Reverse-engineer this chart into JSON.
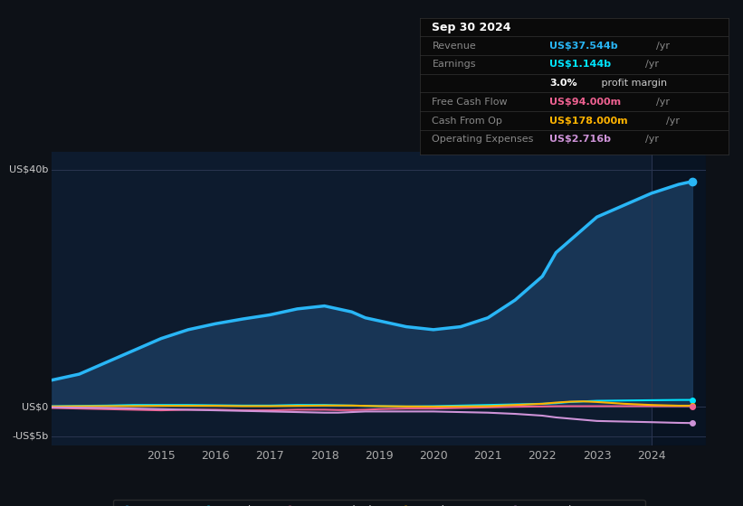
{
  "background_color": "#0d1117",
  "plot_bg_color": "#0d1b2e",
  "grid_color": "#2a3550",
  "years": [
    2013,
    2013.5,
    2014,
    2014.5,
    2015,
    2015.5,
    2016,
    2016.5,
    2017,
    2017.5,
    2018,
    2018.25,
    2018.5,
    2018.75,
    2019,
    2019.5,
    2020,
    2020.5,
    2021,
    2021.5,
    2022,
    2022.25,
    2022.5,
    2022.75,
    2023,
    2023.5,
    2024,
    2024.5,
    2024.75
  ],
  "revenue": [
    4.5,
    5.5,
    7.5,
    9.5,
    11.5,
    13.0,
    14.0,
    14.8,
    15.5,
    16.5,
    17.0,
    16.5,
    16.0,
    15.0,
    14.5,
    13.5,
    13.0,
    13.5,
    15.0,
    18.0,
    22.0,
    26.0,
    28.0,
    30.0,
    32.0,
    34.0,
    36.0,
    37.5,
    38.0
  ],
  "earnings": [
    0.1,
    0.15,
    0.2,
    0.3,
    0.3,
    0.3,
    0.25,
    0.2,
    0.2,
    0.3,
    0.3,
    0.25,
    0.2,
    0.15,
    0.1,
    0.05,
    0.1,
    0.2,
    0.3,
    0.4,
    0.5,
    0.6,
    0.8,
    0.9,
    1.0,
    1.05,
    1.1,
    1.144,
    1.15
  ],
  "free_cash_flow": [
    -0.2,
    -0.3,
    -0.4,
    -0.5,
    -0.6,
    -0.5,
    -0.5,
    -0.6,
    -0.6,
    -0.5,
    -0.5,
    -0.55,
    -0.55,
    -0.5,
    -0.4,
    -0.3,
    -0.3,
    -0.2,
    -0.1,
    0.0,
    0.05,
    0.08,
    0.09,
    0.09,
    0.09,
    0.09,
    0.094,
    0.094,
    0.094
  ],
  "cash_from_op": [
    0.05,
    0.08,
    0.1,
    0.12,
    0.15,
    0.15,
    0.15,
    0.1,
    0.1,
    0.15,
    0.2,
    0.2,
    0.2,
    0.15,
    0.1,
    0.05,
    0.02,
    0.05,
    0.1,
    0.3,
    0.5,
    0.7,
    0.85,
    0.9,
    0.8,
    0.5,
    0.3,
    0.178,
    0.178
  ],
  "operating_expenses": [
    -0.1,
    -0.15,
    -0.2,
    -0.3,
    -0.4,
    -0.5,
    -0.6,
    -0.7,
    -0.8,
    -0.9,
    -1.0,
    -1.0,
    -0.9,
    -0.8,
    -0.8,
    -0.8,
    -0.8,
    -0.9,
    -1.0,
    -1.2,
    -1.5,
    -1.8,
    -2.0,
    -2.2,
    -2.4,
    -2.5,
    -2.6,
    -2.716,
    -2.75
  ],
  "revenue_color": "#29b6f6",
  "earnings_color": "#00e5ff",
  "free_cash_flow_color": "#f06292",
  "cash_from_op_color": "#ffb300",
  "operating_expenses_color": "#ce93d8",
  "revenue_fill_color": "#1a3a5c",
  "ylim": [
    -6.5,
    43
  ],
  "yticks": [
    -5,
    0,
    40
  ],
  "ytick_labels": [
    "-US$5b",
    "US$0",
    "US$40b"
  ],
  "xticks": [
    2015,
    2016,
    2017,
    2018,
    2019,
    2020,
    2021,
    2022,
    2023,
    2024
  ],
  "xlim": [
    2013.0,
    2025.0
  ],
  "legend_items": [
    "Revenue",
    "Earnings",
    "Free Cash Flow",
    "Cash From Op",
    "Operating Expenses"
  ],
  "legend_colors": [
    "#29b6f6",
    "#00e5ff",
    "#f06292",
    "#ffb300",
    "#ce93d8"
  ],
  "table_title": "Sep 30 2024",
  "table_rows": [
    {
      "label": "Revenue",
      "value": "US$37.544b",
      "suffix": "/yr",
      "value_color": "#29b6f6"
    },
    {
      "label": "Earnings",
      "value": "US$1.144b",
      "suffix": "/yr",
      "value_color": "#00e5ff"
    },
    {
      "label": "",
      "value": "3.0%",
      "suffix": " profit margin",
      "value_color": "#ffffff"
    },
    {
      "label": "Free Cash Flow",
      "value": "US$94.000m",
      "suffix": "/yr",
      "value_color": "#f06292"
    },
    {
      "label": "Cash From Op",
      "value": "US$178.000m",
      "suffix": "/yr",
      "value_color": "#ffb300"
    },
    {
      "label": "Operating Expenses",
      "value": "US$2.716b",
      "suffix": "/yr",
      "value_color": "#ce93d8"
    }
  ],
  "shade_x_start": 2024.0,
  "shade_x_end": 2025.0
}
